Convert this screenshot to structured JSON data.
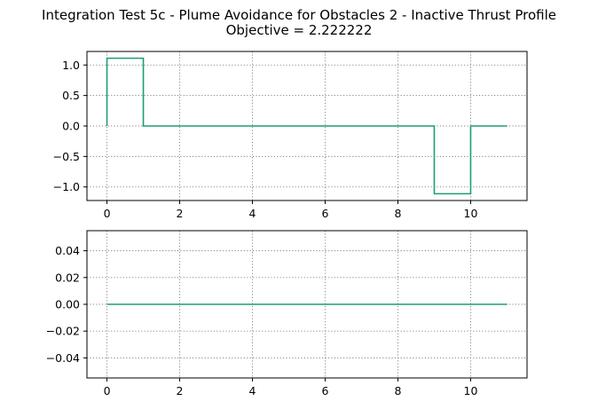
{
  "figure": {
    "title_line1": "Integration Test 5c - Plume Avoidance for Obstacles 2 - Inactive Thrust Profile",
    "title_line2": "Objective = 2.222222"
  },
  "colors": {
    "series": "#1b9e77"
  },
  "chart_data": [
    {
      "type": "line",
      "drawstyle": "steps-post",
      "x": [
        0,
        0,
        1,
        9,
        10,
        11
      ],
      "y": [
        0,
        1.111111,
        0,
        -1.111111,
        0,
        0
      ],
      "xlim": [
        -0.55,
        11.55
      ],
      "ylim": [
        -1.2222,
        1.2222
      ],
      "xticks": [
        0,
        2,
        4,
        6,
        8,
        10
      ],
      "xtick_labels": [
        "0",
        "2",
        "4",
        "6",
        "8",
        "10"
      ],
      "yticks": [
        1.0,
        0.5,
        0.0,
        -0.5,
        -1.0
      ],
      "ytick_labels": [
        "1.0",
        "0.5",
        "0.0",
        "−0.5",
        "−1.0"
      ],
      "grid": true
    },
    {
      "type": "line",
      "drawstyle": "steps-post",
      "x": [
        0,
        11
      ],
      "y": [
        0,
        0
      ],
      "xlim": [
        -0.55,
        11.55
      ],
      "ylim": [
        -0.055,
        0.055
      ],
      "xticks": [
        0,
        2,
        4,
        6,
        8,
        10
      ],
      "xtick_labels": [
        "0",
        "2",
        "4",
        "6",
        "8",
        "10"
      ],
      "yticks": [
        0.04,
        0.02,
        0.0,
        -0.02,
        -0.04
      ],
      "ytick_labels": [
        "0.04",
        "0.02",
        "0.00",
        "−0.02",
        "−0.04"
      ],
      "grid": true
    }
  ]
}
